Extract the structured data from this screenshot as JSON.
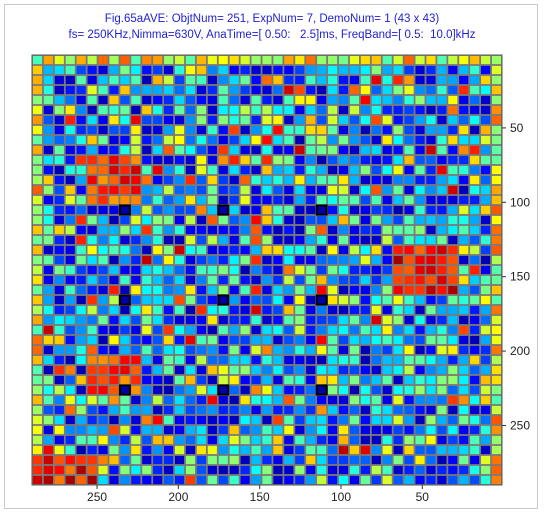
{
  "figure": {
    "title_line1": "Fig.65aAVE: ObjtNum= 251, ExpNum= 7, DemoNum= 1 (43 x 43)",
    "title_line2": "fs= 250KHz,Nimma=630V, AnaTime=[ 0.50:   2.5]ms, FreqBand=[ 0.5:  10.0]kHz"
  },
  "chart_data": {
    "type": "heatmap",
    "title": "Fig.65aAVE: ObjtNum= 251, ExpNum= 7, DemoNum= 1 (43 x 43)",
    "subtitle": "fs= 250KHz,Nimma=630V, AnaTime=[ 0.50:   2.5]ms, FreqBand=[ 0.5:  10.0]kHz",
    "grid_size": [
      43,
      43
    ],
    "x_range": [
      1,
      290
    ],
    "y_range": [
      1,
      290
    ],
    "x_reversed": true,
    "x_ticks": [
      {
        "value": 50,
        "label": "50"
      },
      {
        "value": 100,
        "label": "100"
      },
      {
        "value": 150,
        "label": "150"
      },
      {
        "value": 200,
        "label": "200"
      },
      {
        "value": 250,
        "label": "250"
      }
    ],
    "y_ticks": [
      {
        "value": 50,
        "label": "50"
      },
      {
        "value": 100,
        "label": "100"
      },
      {
        "value": 150,
        "label": "150"
      },
      {
        "value": 200,
        "label": "200"
      },
      {
        "value": 250,
        "label": "250"
      }
    ],
    "y_axis_side": "right",
    "colormap": "jet",
    "grid": true,
    "colors": {
      "title": "#1f1fd0",
      "gridline": "#7a7a7a"
    },
    "hot_regions": [
      {
        "row_range": [
          10,
          14
        ],
        "col_range": [
          5,
          9
        ],
        "level": 0.82
      },
      {
        "row_range": [
          19,
          23
        ],
        "col_range": [
          33,
          38
        ],
        "level": 0.88
      },
      {
        "row_range": [
          30,
          33
        ],
        "col_range": [
          5,
          9
        ],
        "level": 0.82
      },
      {
        "row_range": [
          40,
          42
        ],
        "col_range": [
          0,
          5
        ],
        "level": 0.86
      }
    ],
    "marked_cells": [
      {
        "row": 15,
        "col": 8
      },
      {
        "row": 15,
        "col": 17
      },
      {
        "row": 15,
        "col": 26
      },
      {
        "row": 24,
        "col": 8
      },
      {
        "row": 24,
        "col": 17
      },
      {
        "row": 24,
        "col": 26
      },
      {
        "row": 33,
        "col": 8
      },
      {
        "row": 33,
        "col": 17
      },
      {
        "row": 33,
        "col": 26
      }
    ],
    "edge_column_level": 0.62
  }
}
